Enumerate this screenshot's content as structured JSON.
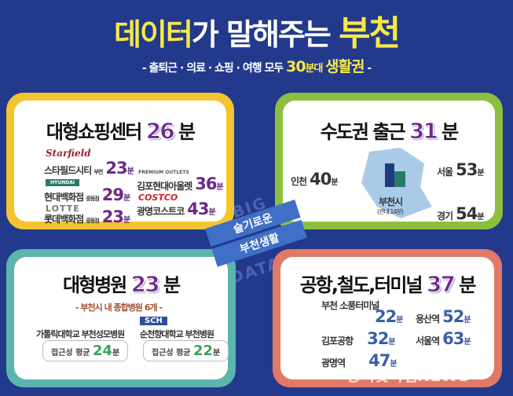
{
  "header": {
    "title_a": "데이터",
    "title_b": "가 말해주는 ",
    "title_c": "부천",
    "subtitle_a": "- 출퇴근 · 의료 · 쇼핑 · 여행 모두 ",
    "subtitle_b": "30",
    "subtitle_c": "분대 ",
    "subtitle_d": "생활권",
    "subtitle_e": " -"
  },
  "band": {
    "line1": "슬기로운",
    "line2": "부천생활",
    "bg1": "BIG",
    "bg2": "DATA"
  },
  "unit": "분",
  "shopping": {
    "title": "대형쇼핑센터",
    "value": "26",
    "border": "#f2c530",
    "items": [
      {
        "logo": "Starfield",
        "name": "스타필드시티",
        "branch": "부천",
        "value": "23"
      },
      {
        "logo": "HYUNDAI",
        "name": "현대백화점",
        "branch": "중동점",
        "value": "29"
      },
      {
        "logo": "LOTTE",
        "name": "롯데백화점",
        "branch": "중동점",
        "value": "23"
      },
      {
        "logo": "PREMIUM OUTLETS",
        "name": "김포현대아울렛",
        "branch": "",
        "value": "36"
      },
      {
        "logo": "COSTCO",
        "name": "광명코스트코",
        "branch": "",
        "value": "43"
      }
    ]
  },
  "commute": {
    "title": "수도권 출근",
    "value": "31",
    "border": "#8dbf3f",
    "center": "부천시",
    "center_note": "(관내 14분)",
    "items": [
      {
        "name": "인천",
        "value": "40"
      },
      {
        "name": "서울",
        "value": "53"
      },
      {
        "name": "경기",
        "value": "54"
      }
    ]
  },
  "hospital": {
    "title": "대형병원",
    "value": "23",
    "border": "#5bb5ad",
    "note": "- 부천시 내 종합병원 6개 -",
    "items": [
      {
        "name": "가톨릭대학교 부천성모병원",
        "label": "접근성 평균",
        "value": "24"
      },
      {
        "name": "순천향대학교 부천병원",
        "label": "접근성 평균",
        "value": "22",
        "logo": "SCH"
      }
    ]
  },
  "transport": {
    "title": "공항,철도,터미널",
    "value": "37",
    "border": "#e07a67",
    "items": [
      {
        "name": "부천 소풍터미널",
        "value": "22"
      },
      {
        "name": "용산역",
        "value": "52"
      },
      {
        "name": "김포공항",
        "value": "32"
      },
      {
        "name": "서울역",
        "value": "63"
      },
      {
        "name": "광명역",
        "value": "47"
      }
    ]
  },
  "watermark": "경기핫타임NEWS"
}
